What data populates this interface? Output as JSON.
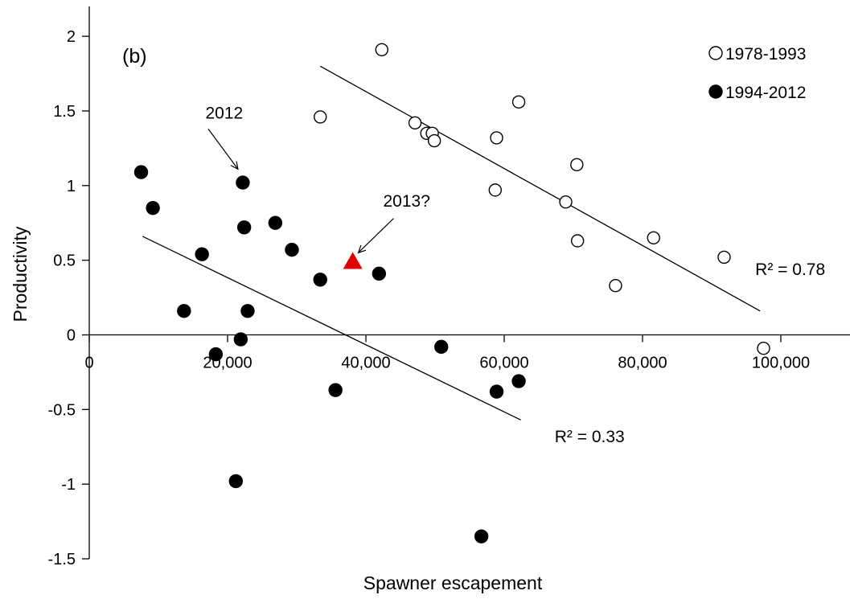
{
  "chart_data": {
    "type": "scatter",
    "panel_label": "(b)",
    "xlabel": "Spawner escapement",
    "ylabel": "Productivity",
    "xlim": [
      0,
      110000
    ],
    "ylim": [
      -1.5,
      2.2
    ],
    "x_ticks": [
      0,
      20000,
      40000,
      60000,
      80000,
      100000
    ],
    "x_tick_labels": [
      "0",
      "20,000",
      "40,000",
      "60,000",
      "80,000",
      "100,000"
    ],
    "y_ticks": [
      -1.5,
      -1,
      -0.5,
      0,
      0.5,
      1,
      1.5,
      2
    ],
    "y_tick_labels": [
      "-1.5",
      "-1",
      "-0.5",
      "0",
      "0.5",
      "1",
      "1.5",
      "2"
    ],
    "grid": false,
    "legend_position": "top-right",
    "series": [
      {
        "name": "1978-1993",
        "marker": "open-circle",
        "color": "#000000",
        "points": [
          [
            42300,
            1.91
          ],
          [
            33400,
            1.46
          ],
          [
            47100,
            1.42
          ],
          [
            48800,
            1.35
          ],
          [
            49600,
            1.35
          ],
          [
            49900,
            1.3
          ],
          [
            58900,
            1.32
          ],
          [
            62100,
            1.56
          ],
          [
            58700,
            0.97
          ],
          [
            70500,
            1.14
          ],
          [
            68900,
            0.89
          ],
          [
            70600,
            0.63
          ],
          [
            81600,
            0.65
          ],
          [
            76100,
            0.33
          ],
          [
            91800,
            0.52
          ],
          [
            97500,
            -0.09
          ]
        ],
        "trendline": {
          "x": [
            33400,
            97000
          ],
          "y": [
            1.8,
            0.16
          ]
        },
        "r2_label": "R² = 0.78"
      },
      {
        "name": "1994-2012",
        "marker": "filled-circle",
        "color": "#000000",
        "points": [
          [
            7500,
            1.09
          ],
          [
            9200,
            0.85
          ],
          [
            16300,
            0.54
          ],
          [
            13700,
            0.16
          ],
          [
            18300,
            -0.13
          ],
          [
            22200,
            1.02
          ],
          [
            22400,
            0.72
          ],
          [
            21900,
            -0.03
          ],
          [
            22900,
            0.16
          ],
          [
            26900,
            0.75
          ],
          [
            29300,
            0.57
          ],
          [
            33400,
            0.37
          ],
          [
            41900,
            0.41
          ],
          [
            35600,
            -0.37
          ],
          [
            50900,
            -0.08
          ],
          [
            21200,
            -0.98
          ],
          [
            58900,
            -0.38
          ],
          [
            62100,
            -0.31
          ],
          [
            56700,
            -1.35
          ]
        ],
        "trendline": {
          "x": [
            7700,
            62400
          ],
          "y": [
            0.66,
            -0.57
          ]
        },
        "r2_label": "R² = 0.33"
      }
    ],
    "highlight_point": {
      "x": 38100,
      "y": 0.49,
      "marker": "triangle",
      "color": "#e00000"
    },
    "annotations": [
      {
        "text": "2012",
        "text_at": [
          16800,
          1.45
        ],
        "arrow_from": [
          17200,
          1.38
        ],
        "arrow_to": [
          21500,
          1.11
        ]
      },
      {
        "text": "2013?",
        "text_at": [
          42500,
          0.86
        ],
        "arrow_from": [
          44000,
          0.78
        ],
        "arrow_to": [
          38900,
          0.55
        ]
      }
    ],
    "r2_label_positions": [
      {
        "text": "R² = 0.78",
        "at": [
          96300,
          0.4
        ]
      },
      {
        "text": "R² = 0.33",
        "at": [
          67300,
          -0.72
        ]
      }
    ]
  }
}
